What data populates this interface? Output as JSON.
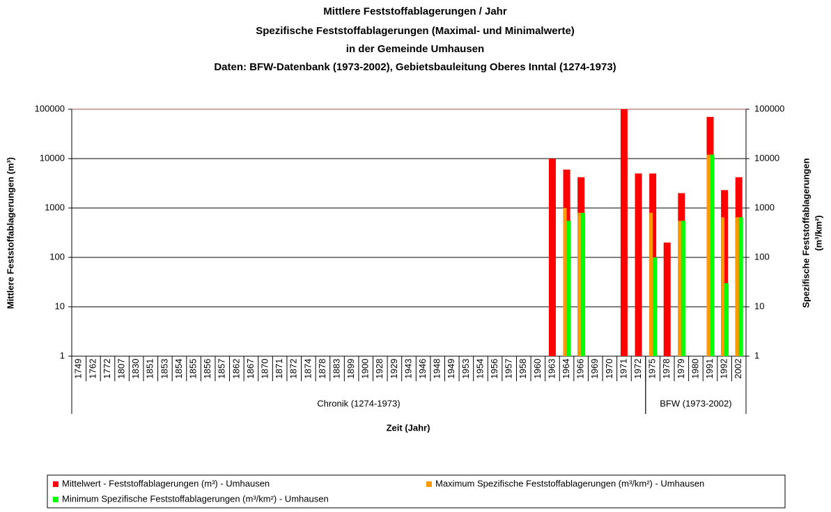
{
  "chart_data": {
    "type": "bar",
    "title": [
      "Mittlere Feststoffablagerungen / Jahr",
      "Spezifische Feststoffablagerungen (Maximal- und Minimalwerte)",
      "in der Gemeinde Umhausen",
      "Daten: BFW-Datenbank (1973-2002), Gebietsbauleitung Oberes Inntal (1274-1973)"
    ],
    "y_label": "Mittlere Feststoffablagerungen (m³)",
    "y2_label": [
      "Spezifische Feststoffablagerungen",
      "(m³/km²)"
    ],
    "x_label": "Zeit (Jahr)",
    "categories": [
      "1749",
      "1762",
      "1772",
      "1807",
      "1830",
      "1851",
      "1853",
      "1854",
      "1855",
      "1856",
      "1857",
      "1862",
      "1867",
      "1870",
      "1871",
      "1872",
      "1874",
      "1878",
      "1883",
      "1899",
      "1900",
      "1928",
      "1929",
      "1943",
      "1946",
      "1948",
      "1949",
      "1953",
      "1954",
      "1956",
      "1957",
      "1958",
      "1960",
      "1963",
      "1964",
      "1966",
      "1969",
      "1970",
      "1971",
      "1972",
      "1975",
      "1978",
      "1979",
      "1980",
      "1991",
      "1992",
      "2002"
    ],
    "groups": [
      {
        "label": "Chronik (1274-1973)",
        "start": "1749",
        "end": "1972"
      },
      {
        "label": "BFW (1973-2002)",
        "start": "1975",
        "end": "2002"
      }
    ],
    "log_scale": true,
    "grid": true,
    "ylim": [
      1,
      100000
    ],
    "yticks": [
      1,
      10,
      100,
      1000,
      10000,
      100000
    ],
    "y2lim": [
      1,
      100000
    ],
    "y2ticks": [
      1,
      10,
      100,
      1000,
      10000,
      100000
    ],
    "legend_position": "bottom",
    "series": [
      {
        "name": "Mittelwert - Feststoffablagerungen (m³) - Umhausen",
        "color": "#ff0000",
        "values": [
          null,
          null,
          null,
          null,
          null,
          null,
          null,
          null,
          null,
          null,
          null,
          null,
          null,
          null,
          null,
          null,
          null,
          null,
          null,
          null,
          null,
          null,
          null,
          null,
          null,
          null,
          null,
          null,
          null,
          null,
          null,
          null,
          null,
          10000,
          6000,
          4200,
          null,
          null,
          100000,
          5000,
          5000,
          200,
          2000,
          null,
          70000,
          2300,
          4200
        ]
      },
      {
        "name": "Maximum Spezifische Feststoffablagerungen (m³/km²) - Umhausen",
        "color": "#ff9900",
        "axis": "y2",
        "values": [
          null,
          null,
          null,
          null,
          null,
          null,
          null,
          null,
          null,
          null,
          null,
          null,
          null,
          null,
          null,
          null,
          null,
          null,
          null,
          null,
          null,
          null,
          null,
          null,
          null,
          null,
          null,
          null,
          null,
          null,
          null,
          null,
          null,
          null,
          1000,
          800,
          null,
          null,
          null,
          null,
          800,
          null,
          550,
          null,
          12000,
          650,
          650
        ]
      },
      {
        "name": "Minimum Spezifische Feststoffablagerungen (m³/km²) - Umhausen",
        "color": "#00ff00",
        "axis": "y2",
        "values": [
          null,
          null,
          null,
          null,
          null,
          null,
          null,
          null,
          null,
          null,
          null,
          null,
          null,
          null,
          null,
          null,
          null,
          null,
          null,
          null,
          null,
          null,
          null,
          null,
          null,
          null,
          null,
          null,
          null,
          null,
          null,
          null,
          null,
          null,
          550,
          800,
          null,
          null,
          null,
          null,
          100,
          null,
          550,
          null,
          12000,
          30,
          650
        ]
      }
    ]
  }
}
